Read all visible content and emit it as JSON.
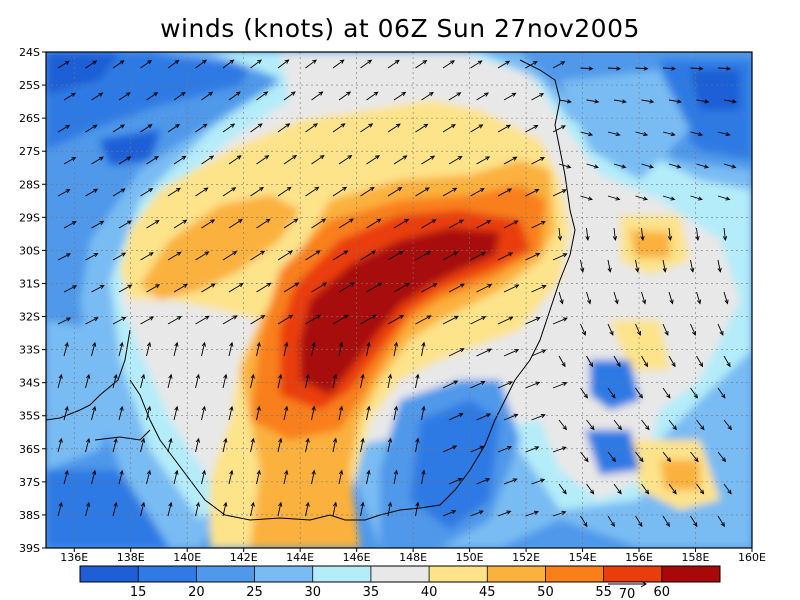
{
  "title": "winds (knots) at 06Z Sun 27nov2005",
  "lat_labels": [
    "24S",
    "25S",
    "26S",
    "27S",
    "28S",
    "29S",
    "30S",
    "31S",
    "32S",
    "33S",
    "34S",
    "35S",
    "36S",
    "37S",
    "38S",
    "39S"
  ],
  "lon_labels": [
    "136E",
    "138E",
    "140E",
    "142E",
    "144E",
    "146E",
    "148E",
    "150E",
    "152E",
    "154E",
    "156E",
    "158E",
    "160E"
  ],
  "colorbar": {
    "labels": [
      "15",
      "20",
      "25",
      "30",
      "35",
      "40",
      "45",
      "50",
      "55",
      "60"
    ],
    "colors": [
      "#1f5fd6",
      "#2f7ae4",
      "#4f98ea",
      "#79bbf3",
      "#b4ecf9",
      "#e8e8e8",
      "#fde38a",
      "#fbb13e",
      "#f97f1b",
      "#ea3d0e",
      "#a80808"
    ],
    "vector_ref_label": "70"
  },
  "legend_colors": {
    "background": "#ffffff",
    "coast": "#000000",
    "vector": "#000000"
  }
}
